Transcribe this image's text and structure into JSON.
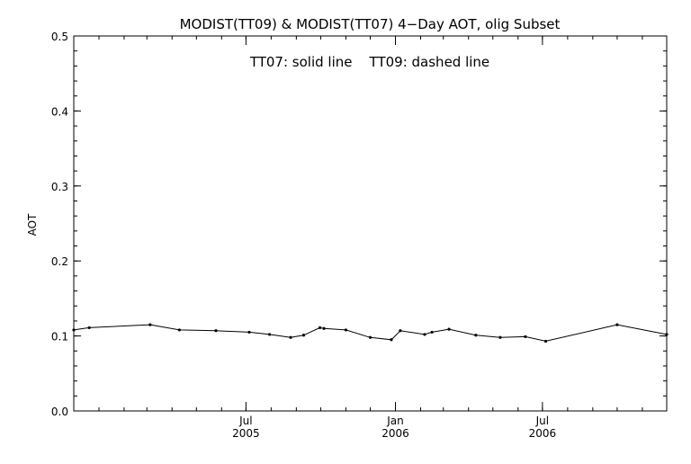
{
  "chart_data": {
    "type": "line",
    "title": "MODIST(TT09) & MODIST(TT07) 4−Day AOT, olig Subset",
    "annotation": "TT07: solid line    TT09: dashed line",
    "ylabel": "AOT",
    "xlabel": "",
    "ylim": [
      0.0,
      0.5
    ],
    "yticks": [
      "0.0",
      "0.1",
      "0.2",
      "0.3",
      "0.4",
      "0.5"
    ],
    "xlim": [
      "2004-12-01",
      "2006-12-01"
    ],
    "xticks": [
      {
        "date": "2005-07-01",
        "month": "Jul",
        "year": "2005"
      },
      {
        "date": "2006-01-01",
        "month": "Jan",
        "year": "2006"
      },
      {
        "date": "2006-07-01",
        "month": "Jul",
        "year": "2006"
      }
    ],
    "grid": false,
    "series": [
      {
        "name": "TT07",
        "style": "solid",
        "color": "#000000",
        "points": [
          {
            "x": "2004-12-01",
            "y": 0.108
          },
          {
            "x": "2004-12-20",
            "y": 0.111
          },
          {
            "x": "2005-03-05",
            "y": 0.115
          },
          {
            "x": "2005-04-10",
            "y": 0.108
          },
          {
            "x": "2005-05-25",
            "y": 0.107
          },
          {
            "x": "2005-07-05",
            "y": 0.105
          },
          {
            "x": "2005-07-30",
            "y": 0.102
          },
          {
            "x": "2005-08-25",
            "y": 0.098
          },
          {
            "x": "2005-09-10",
            "y": 0.101
          },
          {
            "x": "2005-09-30",
            "y": 0.111
          },
          {
            "x": "2005-10-05",
            "y": 0.11
          },
          {
            "x": "2005-11-01",
            "y": 0.108
          },
          {
            "x": "2005-12-01",
            "y": 0.098
          },
          {
            "x": "2005-12-27",
            "y": 0.095
          },
          {
            "x": "2006-01-07",
            "y": 0.107
          },
          {
            "x": "2006-02-06",
            "y": 0.102
          },
          {
            "x": "2006-02-15",
            "y": 0.105
          },
          {
            "x": "2006-03-08",
            "y": 0.109
          },
          {
            "x": "2006-04-10",
            "y": 0.101
          },
          {
            "x": "2006-05-10",
            "y": 0.098
          },
          {
            "x": "2006-06-10",
            "y": 0.099
          },
          {
            "x": "2006-07-05",
            "y": 0.093
          },
          {
            "x": "2006-10-01",
            "y": 0.115
          },
          {
            "x": "2006-12-01",
            "y": 0.102
          }
        ]
      }
    ]
  }
}
